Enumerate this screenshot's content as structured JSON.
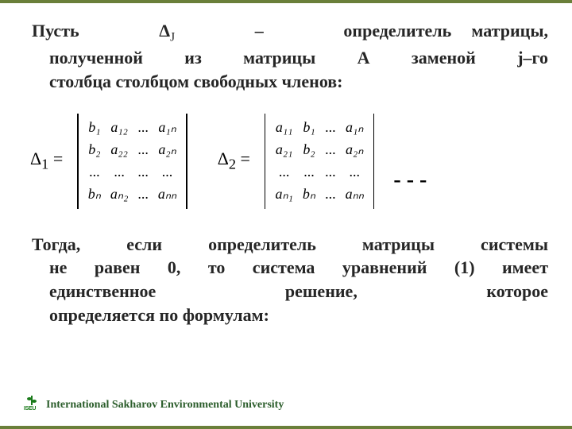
{
  "colors": {
    "border": "#6a7f3a",
    "text": "#262626",
    "footer": "#2b5d2b",
    "matrix_text": "#000000"
  },
  "intro": {
    "line1_pre": "Пусть",
    "delta": "Δ",
    "delta_sub": "J",
    "line1_mid": "–",
    "line1_post": "определитель матрицы,",
    "line2": "полученной из матрицы А заменой j–го",
    "line3": "столбца столбцом свободных членов:"
  },
  "math": {
    "delta1_label": "Δ",
    "delta1_sub": "1",
    "eq": "=",
    "det1": {
      "cols": 4,
      "cells": [
        "b₁",
        "a₁₂",
        "...",
        "a₁ₙ",
        "b₂",
        "a₂₂",
        "...",
        "a₂ₙ",
        "...",
        "...",
        "...",
        "...",
        "bₙ",
        "aₙ₂",
        "...",
        "aₙₙ"
      ]
    },
    "delta2_label": "Δ",
    "delta2_sub": "2",
    "det2": {
      "cols": 4,
      "cells": [
        "a₁₁",
        "b₁",
        "...",
        "a₁ₙ",
        "a₂₁",
        "b₂",
        "...",
        "a₂ₙ",
        "...",
        "...",
        "...",
        "...",
        "aₙ₁",
        "bₙ",
        "...",
        "aₙₙ"
      ]
    },
    "trailing_dots": "- - -"
  },
  "conclusion": {
    "l1": "Тогда, если определитель матрицы системы",
    "l2": "не равен 0, то система уравнений (1) имеет",
    "l3_a": "единственное",
    "l3_b": "решение,",
    "l3_c": "которое",
    "l4": "определяется по формулам:"
  },
  "footer": {
    "logo_text": "ISEU",
    "org": "International Sakharov Environmental University"
  }
}
